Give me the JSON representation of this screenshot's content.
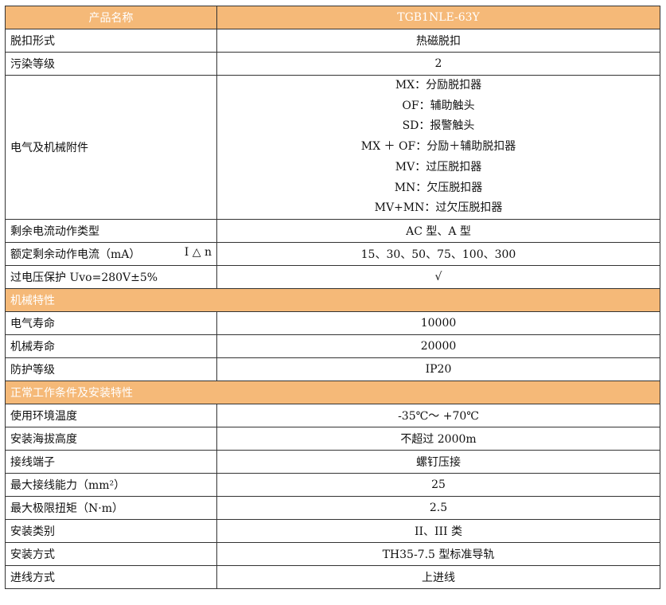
{
  "header": {
    "label": "产品名称",
    "value": "TGB1NLE-63Y"
  },
  "rows1": [
    {
      "label": "脱扣形式",
      "value": "热磁脱扣"
    },
    {
      "label": "污染等级",
      "value": "2"
    }
  ],
  "accessories": {
    "label": "电气及机械附件",
    "items": [
      "MX：分励脱扣器",
      "OF：辅助触头",
      "SD：报警触头",
      "MX ＋ OF：分励＋辅助脱扣器",
      "MV：过压脱扣器",
      "MN：欠压脱扣器",
      "MV+MN：过欠压脱扣器"
    ]
  },
  "rows2": [
    {
      "label": "剩余电流动作类型",
      "value": "AC 型、A 型"
    },
    {
      "label": "额定剩余动作电流（mA）",
      "suffix": "I △ n",
      "value": "15、30、50、75、100、300"
    },
    {
      "label": "过电压保护 Uvo=280V±5%",
      "value": "√"
    }
  ],
  "section1": "机械特性",
  "rows3": [
    {
      "label": "电气寿命",
      "value": "10000"
    },
    {
      "label": "机械寿命",
      "value": "20000"
    },
    {
      "label": "防护等级",
      "value": "IP20"
    }
  ],
  "section2": "正常工作条件及安装特性",
  "rows4": [
    {
      "label": "使用环境温度",
      "value": "-35℃～ +70℃"
    },
    {
      "label": "安装海拔高度",
      "value": "不超过 2000m"
    },
    {
      "label": "接线端子",
      "value": "螺钉压接"
    },
    {
      "label": "最大接线能力（mm²）",
      "value": "25"
    },
    {
      "label": "最大极限扭矩（N·m）",
      "value": "2.5"
    },
    {
      "label": "安装类别",
      "value": "II、III 类"
    },
    {
      "label": "安装方式",
      "value": "TH35-7.5 型标准导轨"
    },
    {
      "label": "进线方式",
      "value": "上进线"
    }
  ],
  "colors": {
    "header_bg": "#f5b978",
    "header_text": "#ffffff",
    "border": "#333333"
  }
}
